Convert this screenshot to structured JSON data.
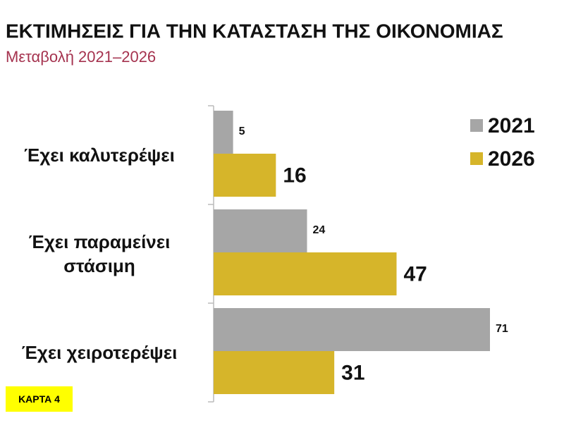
{
  "chart_data": {
    "type": "bar",
    "orientation": "horizontal",
    "title": "ΕΚΤΙΜΗΣΕΙΣ ΓΙΑ ΤΗΝ ΚΑΤΑΣΤΑΣΗ ΤΗΣ ΟΙΚΟΝΟΜΙΑΣ",
    "subtitle": "Μεταβολή 2021–2026",
    "categories": [
      "Έχει καλυτερέψει",
      "Έχει παραμείνει στάσιμη",
      "Έχει χειροτερέψει"
    ],
    "series": [
      {
        "name": "2021",
        "color": "#a6a6a6",
        "values": [
          5,
          24,
          71
        ]
      },
      {
        "name": "2026",
        "color": "#d6b52a",
        "values": [
          16,
          47,
          31
        ]
      }
    ],
    "legend": "top-right",
    "annotations": [
      "ΚΑΡΤΑ 4"
    ]
  }
}
